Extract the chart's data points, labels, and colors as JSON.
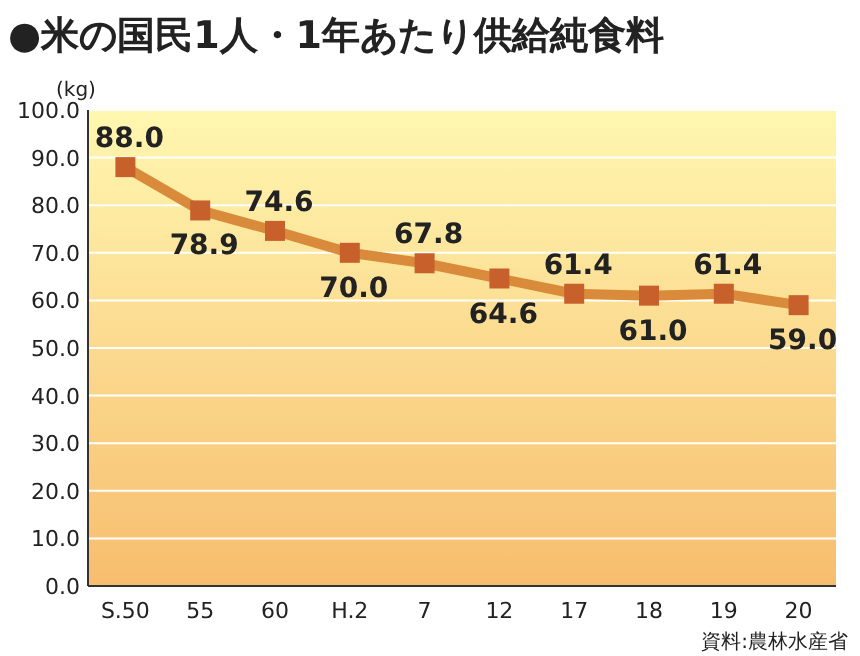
{
  "chart_data": {
    "type": "line",
    "title": "●米の国民1人・1年あたり供給純食料",
    "ylabel": "(kg)",
    "categories": [
      "S.50",
      "55",
      "60",
      "H.2",
      "7",
      "12",
      "17",
      "18",
      "19",
      "20"
    ],
    "series": [
      {
        "color": "#c8602c",
        "values": [
          88.0,
          78.9,
          74.6,
          70.0,
          67.8,
          64.6,
          61.4,
          61.0,
          61.4,
          59.0
        ],
        "value_labels": [
          "88.0",
          "78.9",
          "74.6",
          "70.0",
          "67.8",
          "64.6",
          "61.4",
          "61.0",
          "61.4",
          "59.0"
        ]
      }
    ],
    "ylim": [
      0,
      100
    ],
    "yticks": [
      {
        "value": 0,
        "label": "0.0"
      },
      {
        "value": 10,
        "label": "10.0"
      },
      {
        "value": 20,
        "label": "20.0"
      },
      {
        "value": 30,
        "label": "30.0"
      },
      {
        "value": 40,
        "label": "40.0"
      },
      {
        "value": 50,
        "label": "50.0"
      },
      {
        "value": 60,
        "label": "60.0"
      },
      {
        "value": 70,
        "label": "70.0"
      },
      {
        "value": 80,
        "label": "80.0"
      },
      {
        "value": 90,
        "label": "90.0"
      },
      {
        "value": 100,
        "label": "100.0"
      }
    ],
    "grid": "y",
    "marker": "square",
    "line_style": "solid",
    "annotations": [
      "資料:農林水産省"
    ]
  }
}
